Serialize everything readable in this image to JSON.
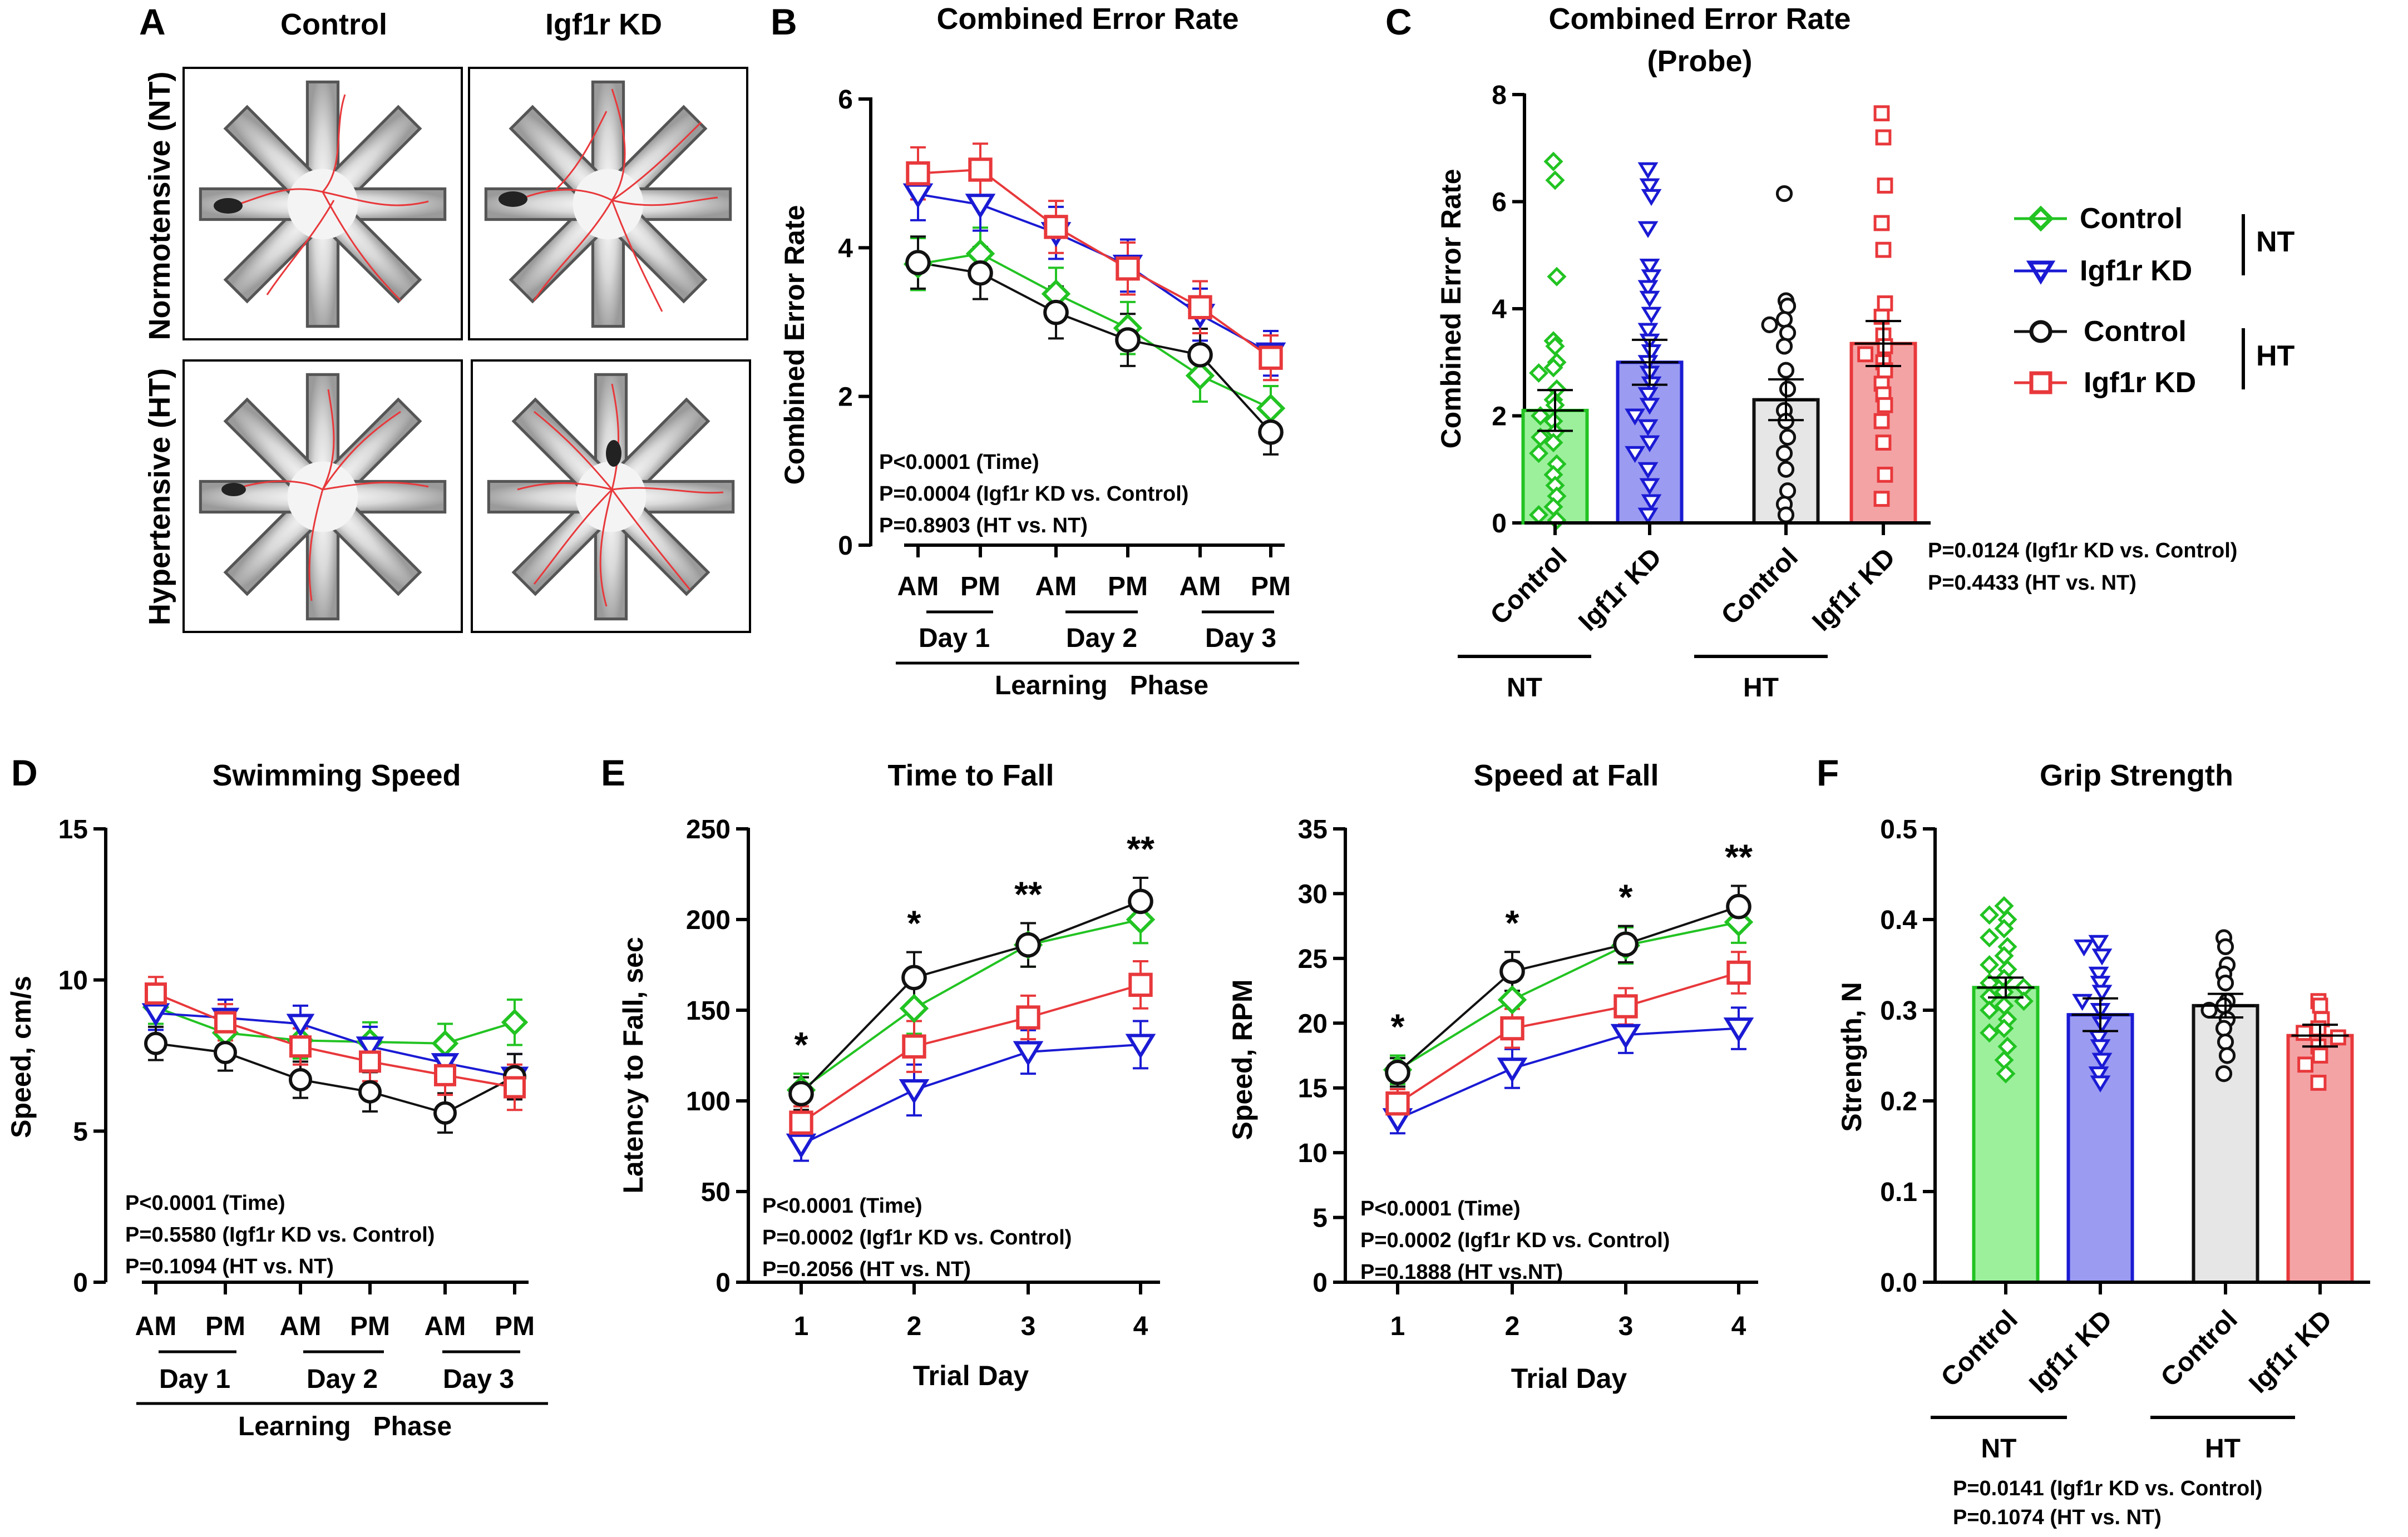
{
  "panel_letters": {
    "a": "A",
    "b": "B",
    "c": "C",
    "d": "D",
    "e": "E",
    "f": "F"
  },
  "colors": {
    "control_nt": "#22c322",
    "igf1r_nt": "#1a1ad4",
    "control_ht": "#111111",
    "igf1r_ht": "#e8383b"
  },
  "panel_a": {
    "col_labels": [
      "Control",
      "Igf1r KD"
    ],
    "row_labels": [
      "Normotensive (NT)",
      "Hypertensive (HT)"
    ]
  },
  "legend": {
    "entries": [
      {
        "label": "Control",
        "group": "NT"
      },
      {
        "label": "Igf1r KD",
        "group": "NT"
      },
      {
        "label": "Control",
        "group": "HT"
      },
      {
        "label": "Igf1r KD",
        "group": "HT"
      }
    ],
    "nt_label": "NT",
    "ht_label": "HT"
  },
  "chart_data": [
    {
      "id": "B",
      "type": "line",
      "title": "Combined Error Rate",
      "ylabel": "Combined Error Rate",
      "ylim": [
        0,
        6
      ],
      "yticks": [
        "0",
        "2",
        "4",
        "6"
      ],
      "x": [
        "AM",
        "PM",
        "AM",
        "PM",
        "AM",
        "PM"
      ],
      "day_labels": [
        "Day 1",
        "Day 2",
        "Day 3"
      ],
      "phase_label": "Learning   Phase",
      "series": [
        {
          "name": "Control NT",
          "values": [
            3.78,
            3.92,
            3.38,
            2.92,
            2.28,
            1.84
          ]
        },
        {
          "name": "Igf1r KD NT",
          "values": [
            4.72,
            4.58,
            4.2,
            3.76,
            3.1,
            2.58
          ]
        },
        {
          "name": "Control HT",
          "values": [
            3.8,
            3.66,
            3.13,
            2.76,
            2.56,
            1.52
          ]
        },
        {
          "name": "Igf1r KD HT",
          "values": [
            5.0,
            5.05,
            4.28,
            3.72,
            3.2,
            2.52
          ]
        }
      ],
      "errors": [
        0.35,
        0.35,
        0.35,
        0.35,
        0.35,
        0.3
      ],
      "stats": [
        "P<0.0001 (Time)",
        "P=0.0004 (Igf1r KD vs. Control)",
        "P=0.8903 (HT vs. NT)"
      ]
    },
    {
      "id": "C",
      "type": "bar",
      "title": "Combined Error Rate",
      "subtitle": "(Probe)",
      "ylabel": "Combined Error Rate",
      "ylim": [
        0,
        8
      ],
      "yticks": [
        "0",
        "2",
        "4",
        "6",
        "8"
      ],
      "categories": [
        "Control",
        "Igf1r KD",
        "Control",
        "Igf1r KD"
      ],
      "group_labels": [
        "NT",
        "HT"
      ],
      "values": [
        2.1,
        3.0,
        2.3,
        3.35
      ],
      "errors": [
        0.38,
        0.42,
        0.38,
        0.42
      ],
      "points": [
        [
          6.75,
          6.4,
          4.6,
          3.4,
          3.3,
          3.0,
          2.9,
          2.8,
          2.5,
          2.3,
          2.2,
          2.0,
          1.9,
          1.7,
          1.6,
          1.5,
          1.3,
          1.1,
          0.9,
          0.7,
          0.5,
          0.3,
          0.15,
          0.05
        ],
        [
          6.6,
          6.3,
          6.1,
          5.5,
          4.8,
          4.6,
          4.4,
          4.2,
          3.9,
          3.6,
          3.4,
          3.2,
          3.0,
          2.8,
          2.6,
          2.4,
          2.2,
          2.0,
          1.8,
          1.5,
          1.3,
          1.0,
          0.7,
          0.4,
          0.15
        ],
        [
          6.15,
          4.15,
          4.05,
          3.8,
          3.7,
          3.55,
          3.3,
          2.85,
          2.5,
          2.1,
          1.9,
          1.6,
          1.3,
          1.0,
          0.6,
          0.35,
          0.15
        ],
        [
          7.65,
          7.2,
          6.3,
          5.6,
          5.1,
          4.1,
          3.85,
          3.5,
          3.3,
          3.15,
          3.0,
          2.85,
          2.6,
          2.4,
          2.2,
          1.9,
          1.5,
          0.9,
          0.45
        ]
      ],
      "stats": [
        "P=0.0124 (Igf1r KD vs. Control)",
        "P=0.4433 (HT vs. NT)"
      ]
    },
    {
      "id": "D",
      "type": "line",
      "title": "Swimming Speed",
      "ylabel": "Speed, cm/s",
      "ylim": [
        0,
        15
      ],
      "yticks": [
        "0",
        "5",
        "10",
        "15"
      ],
      "x": [
        "AM",
        "PM",
        "AM",
        "PM",
        "AM",
        "PM"
      ],
      "day_labels": [
        "Day 1",
        "Day 2",
        "Day 3"
      ],
      "phase_label": "Learning   Phase",
      "series": [
        {
          "name": "Control NT",
          "values": [
            9.1,
            8.25,
            8.0,
            7.95,
            7.9,
            8.6
          ]
        },
        {
          "name": "Igf1r KD NT",
          "values": [
            8.9,
            8.75,
            8.55,
            7.8,
            7.25,
            6.8
          ]
        },
        {
          "name": "Control HT",
          "values": [
            7.9,
            7.6,
            6.7,
            6.3,
            5.6,
            6.8
          ]
        },
        {
          "name": "Igf1r KD HT",
          "values": [
            9.55,
            8.6,
            7.8,
            7.3,
            6.85,
            6.45
          ]
        }
      ],
      "errors": [
        0.55,
        0.6,
        0.6,
        0.65,
        0.65,
        0.75
      ],
      "stats": [
        "P<0.0001 (Time)",
        "P=0.5580 (Igf1r KD vs. Control)",
        "P=0.1094 (HT vs. NT)"
      ]
    },
    {
      "id": "E1",
      "type": "line",
      "title": "Time to Fall",
      "ylabel": "Latency to Fall, sec",
      "xlabel": "Trial Day",
      "ylim": [
        0,
        250
      ],
      "yticks": [
        "0",
        "50",
        "100",
        "150",
        "200",
        "250"
      ],
      "x": [
        "1",
        "2",
        "3",
        "4"
      ],
      "series": [
        {
          "name": "Control NT",
          "values": [
            106,
            151,
            186,
            200
          ]
        },
        {
          "name": "Igf1r KD NT",
          "values": [
            76,
            106,
            127,
            131
          ]
        },
        {
          "name": "Control HT",
          "values": [
            104,
            168,
            186,
            210
          ]
        },
        {
          "name": "Igf1r KD HT",
          "values": [
            88,
            130,
            146,
            164
          ]
        }
      ],
      "errors": [
        9,
        14,
        12,
        13
      ],
      "significance": [
        "*",
        "*",
        "**",
        "**"
      ],
      "stats": [
        "P<0.0001 (Time)",
        "P=0.0002 (Igf1r KD vs. Control)",
        "P=0.2056 (HT vs. NT)"
      ]
    },
    {
      "id": "E2",
      "type": "line",
      "title": "Speed at Fall",
      "ylabel": "Speed, RPM",
      "xlabel": "Trial Day",
      "ylim": [
        0,
        35
      ],
      "yticks": [
        "0",
        "5",
        "10",
        "15",
        "20",
        "25",
        "30",
        "35"
      ],
      "x": [
        "1",
        "2",
        "3",
        "4"
      ],
      "series": [
        {
          "name": "Control NT",
          "values": [
            16.4,
            21.8,
            26.0,
            27.8
          ]
        },
        {
          "name": "Igf1r KD NT",
          "values": [
            12.6,
            16.5,
            19.1,
            19.6
          ]
        },
        {
          "name": "Control HT",
          "values": [
            16.2,
            24.0,
            26.1,
            29.0
          ]
        },
        {
          "name": "Igf1r KD HT",
          "values": [
            13.8,
            19.6,
            21.3,
            23.9
          ]
        }
      ],
      "errors": [
        1.1,
        1.5,
        1.4,
        1.6
      ],
      "significance": [
        "*",
        "*",
        "*",
        "**"
      ],
      "stats": [
        "P<0.0001 (Time)",
        "P=0.0002 (Igf1r KD vs. Control)",
        "P=0.1888 (HT vs.NT)"
      ]
    },
    {
      "id": "F",
      "type": "bar",
      "title": "Grip Strength",
      "ylabel": "Strength, N",
      "ylim": [
        0,
        0.5
      ],
      "yticks": [
        "0.0",
        "0.1",
        "0.2",
        "0.3",
        "0.4",
        "0.5"
      ],
      "categories": [
        "Control",
        "Igf1r KD",
        "Control",
        "Igf1r KD"
      ],
      "group_labels": [
        "NT",
        "HT"
      ],
      "values": [
        0.325,
        0.295,
        0.305,
        0.272
      ],
      "errors": [
        0.011,
        0.018,
        0.013,
        0.012
      ],
      "points": [
        [
          0.415,
          0.405,
          0.4,
          0.39,
          0.38,
          0.37,
          0.36,
          0.35,
          0.345,
          0.335,
          0.33,
          0.325,
          0.32,
          0.315,
          0.31,
          0.305,
          0.3,
          0.29,
          0.28,
          0.275,
          0.26,
          0.245,
          0.23
        ],
        [
          0.375,
          0.37,
          0.36,
          0.34,
          0.33,
          0.32,
          0.31,
          0.3,
          0.285,
          0.27,
          0.26,
          0.245,
          0.23,
          0.22
        ],
        [
          0.38,
          0.37,
          0.35,
          0.34,
          0.33,
          0.31,
          0.305,
          0.3,
          0.29,
          0.28,
          0.265,
          0.25,
          0.23
        ],
        [
          0.31,
          0.305,
          0.29,
          0.28,
          0.275,
          0.27,
          0.26,
          0.25,
          0.24,
          0.22
        ]
      ],
      "stats": [
        "P=0.0141 (Igf1r KD vs. Control)",
        "P=0.1074 (HT vs. NT)"
      ]
    }
  ]
}
